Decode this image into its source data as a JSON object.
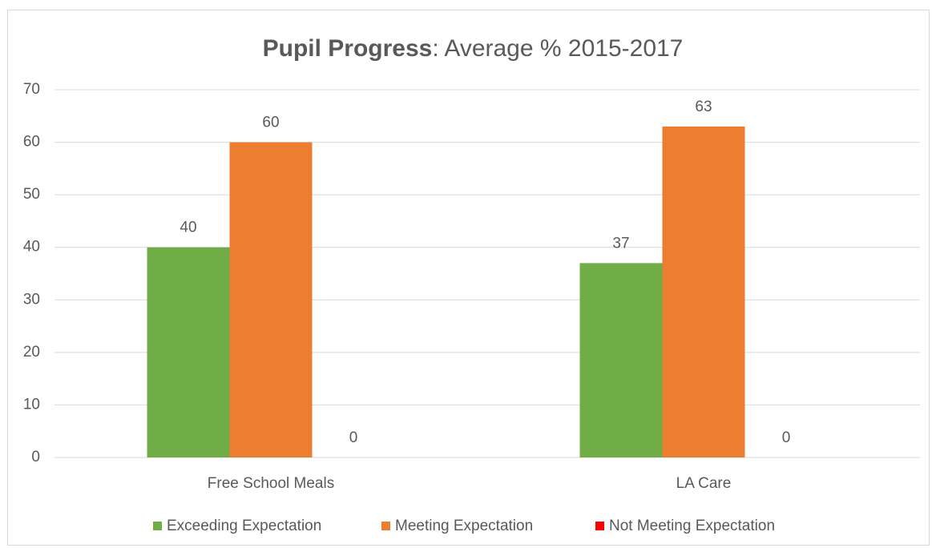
{
  "chart_data": {
    "type": "bar",
    "title": [
      "Pupil Progress",
      ": Average % 2015-2017"
    ],
    "categories": [
      "Free School Meals",
      "LA Care"
    ],
    "series": [
      {
        "name": "Exceeding Expectation",
        "color": "#70ad47",
        "values": [
          40,
          37
        ]
      },
      {
        "name": "Meeting Expectation",
        "color": "#ed7d31",
        "values": [
          60,
          63
        ]
      },
      {
        "name": "Not Meeting Expectation",
        "color": "#ff0000",
        "values": [
          0,
          0
        ]
      }
    ],
    "ylim": [
      0,
      70
    ],
    "yticks": [
      0,
      10,
      20,
      30,
      40,
      50,
      60,
      70
    ],
    "grid": true,
    "legend": "bottom"
  }
}
